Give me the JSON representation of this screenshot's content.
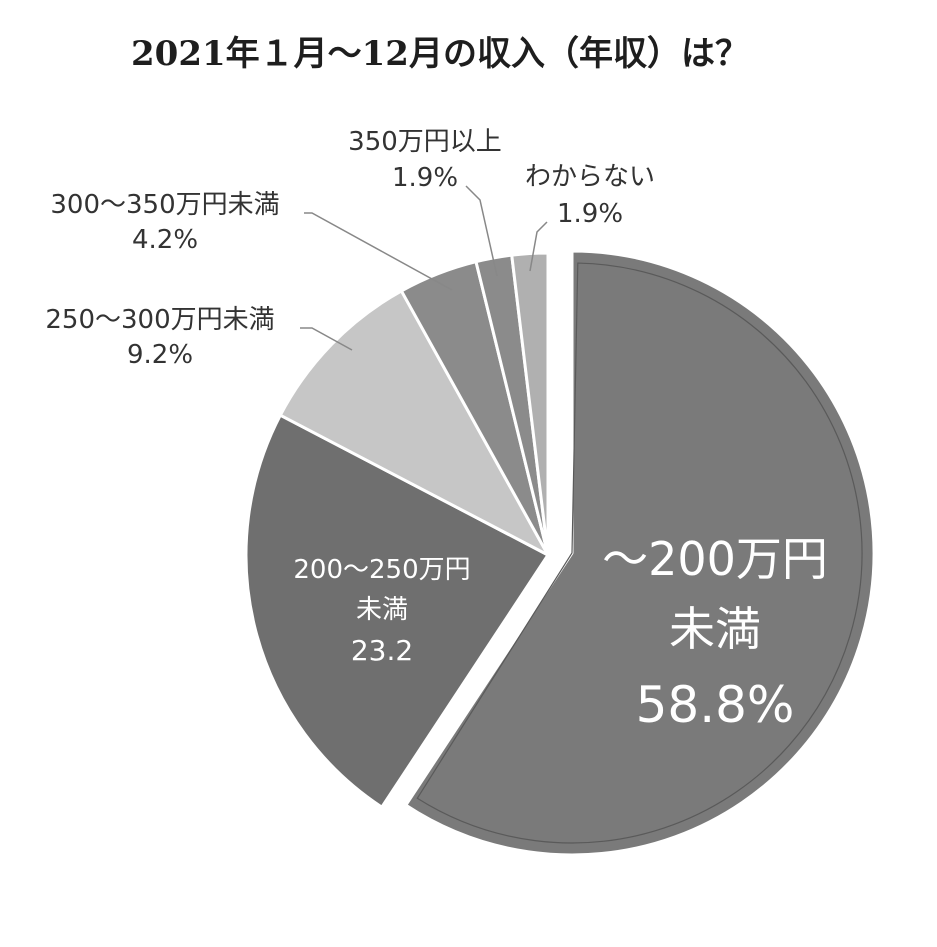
{
  "chart_data": {
    "type": "pie",
    "title": "2021年１月～12月の収入（年収）は？",
    "slices": [
      {
        "label": "～200万円未満",
        "label_lines": [
          "～200万円",
          "未満"
        ],
        "value": 58.8,
        "value_text": "58.8%",
        "color": "#7a7a7a",
        "exploded": true,
        "label_placement": "inside"
      },
      {
        "label": "200～250万円未満",
        "label_lines": [
          "200～250万円",
          "未満"
        ],
        "value": 23.2,
        "value_text": "23.2",
        "color": "#6f6f6f",
        "label_placement": "inside"
      },
      {
        "label": "250～300万円未満",
        "label_lines": [
          "250～300万円未満"
        ],
        "value": 9.2,
        "value_text": "9.2%",
        "color": "#c6c6c6",
        "label_placement": "outside"
      },
      {
        "label": "300～350万円未満",
        "label_lines": [
          "300～350万円未満"
        ],
        "value": 4.2,
        "value_text": "4.2%",
        "color": "#8b8b8b",
        "label_placement": "outside"
      },
      {
        "label": "350万円以上",
        "label_lines": [
          "350万円以上"
        ],
        "value": 1.9,
        "value_text": "1.9%",
        "color": "#8b8b8b",
        "label_placement": "outside"
      },
      {
        "label": "わからない",
        "label_lines": [
          "わからない"
        ],
        "value": 1.9,
        "value_text": "1.9%",
        "color": "#b0b0b0",
        "label_placement": "outside"
      }
    ]
  }
}
